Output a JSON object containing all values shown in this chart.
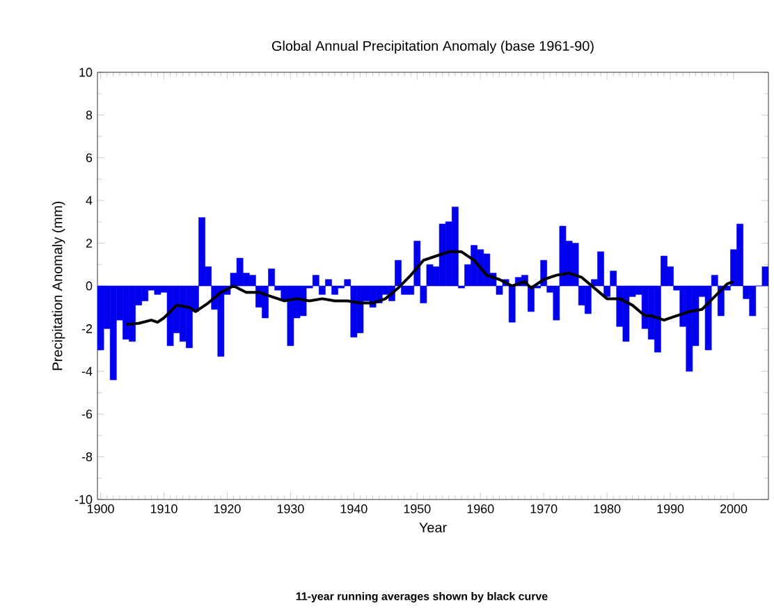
{
  "chart_data": {
    "type": "bar",
    "title": "Global Annual Precipitation Anomaly (base 1961-90)",
    "xlabel": "Year",
    "ylabel": "Precipitation Anomaly (mm)",
    "annotations": [
      "11-year running averages shown by black curve"
    ],
    "x": [
      1900,
      1901,
      1902,
      1903,
      1904,
      1905,
      1906,
      1907,
      1908,
      1909,
      1910,
      1911,
      1912,
      1913,
      1914,
      1915,
      1916,
      1917,
      1918,
      1919,
      1920,
      1921,
      1922,
      1923,
      1924,
      1925,
      1926,
      1927,
      1928,
      1929,
      1930,
      1931,
      1932,
      1933,
      1934,
      1935,
      1936,
      1937,
      1938,
      1939,
      1940,
      1941,
      1942,
      1943,
      1944,
      1945,
      1946,
      1947,
      1948,
      1949,
      1950,
      1951,
      1952,
      1953,
      1954,
      1955,
      1956,
      1957,
      1958,
      1959,
      1960,
      1961,
      1962,
      1963,
      1964,
      1965,
      1966,
      1967,
      1968,
      1969,
      1970,
      1971,
      1972,
      1973,
      1974,
      1975,
      1976,
      1977,
      1978,
      1979,
      1980,
      1981,
      1982,
      1983,
      1984,
      1985,
      1986,
      1987,
      1988,
      1989,
      1990,
      1991,
      1992,
      1993,
      1994,
      1995,
      1996,
      1997,
      1998,
      1999,
      2000,
      2001,
      2002,
      2003,
      2004,
      2005
    ],
    "series": [
      {
        "color": "#0000ee",
        "values": [
          -3.0,
          -2.0,
          -4.4,
          -1.6,
          -2.5,
          -2.6,
          -0.9,
          -0.7,
          -0.2,
          -0.4,
          -0.3,
          -2.8,
          -2.2,
          -2.6,
          -2.9,
          -1.2,
          3.2,
          0.9,
          -1.1,
          -3.3,
          -0.4,
          0.6,
          1.3,
          0.6,
          0.5,
          -1.0,
          -1.5,
          0.8,
          -0.2,
          -0.7,
          -2.8,
          -1.5,
          -1.4,
          -0.1,
          0.5,
          -0.4,
          0.3,
          -0.4,
          -0.1,
          0.3,
          -2.4,
          -2.2,
          -0.7,
          -1.0,
          -0.8,
          -0.4,
          -0.7,
          1.2,
          -0.4,
          -0.4,
          2.1,
          -0.8,
          1.0,
          0.9,
          2.9,
          3.0,
          3.7,
          -0.1,
          1.0,
          1.9,
          1.7,
          1.5,
          0.6,
          -0.4,
          0.3,
          -1.7,
          0.4,
          0.5,
          -1.2,
          -0.1,
          1.2,
          -0.3,
          -1.6,
          2.8,
          2.1,
          2.0,
          -0.9,
          -1.3,
          0.3,
          1.6,
          -0.5,
          0.7,
          -1.9,
          -2.6,
          -0.5,
          -0.4,
          -2.0,
          -2.5,
          -3.1,
          1.4,
          0.9,
          -0.2,
          -1.9,
          -4.0,
          -2.8,
          -0.5,
          -3.0,
          0.5,
          -1.4,
          -0.2,
          1.7,
          2.9,
          -0.6,
          -1.4,
          0.0,
          0.9
        ]
      },
      {
        "type": "line",
        "color": "#000000",
        "x": [
          1904,
          1906,
          1908,
          1909,
          1910,
          1912,
          1914,
          1915,
          1917,
          1919,
          1921,
          1923,
          1925,
          1927,
          1929,
          1931,
          1933,
          1935,
          1937,
          1939,
          1941,
          1943,
          1945,
          1947,
          1949,
          1951,
          1953,
          1955,
          1957,
          1959,
          1961,
          1963,
          1965,
          1967,
          1968,
          1970,
          1972,
          1974,
          1976,
          1978,
          1980,
          1982,
          1984,
          1986,
          1987,
          1989,
          1991,
          1993,
          1995,
          1997,
          1999,
          2000
        ],
        "values": [
          -1.8,
          -1.75,
          -1.6,
          -1.7,
          -1.5,
          -0.9,
          -1.0,
          -1.2,
          -0.8,
          -0.3,
          0.0,
          -0.3,
          -0.3,
          -0.5,
          -0.7,
          -0.6,
          -0.7,
          -0.6,
          -0.7,
          -0.7,
          -0.8,
          -0.8,
          -0.6,
          -0.1,
          0.5,
          1.2,
          1.4,
          1.6,
          1.6,
          1.2,
          0.5,
          0.3,
          0.0,
          0.2,
          -0.1,
          0.3,
          0.5,
          0.6,
          0.4,
          -0.1,
          -0.6,
          -0.6,
          -0.9,
          -1.4,
          -1.4,
          -1.6,
          -1.4,
          -1.2,
          -1.1,
          -0.5,
          0.1,
          0.2
        ]
      }
    ],
    "xlim": [
      1899.5,
      2005.5
    ],
    "ylim": [
      -10,
      10
    ],
    "xticks": [
      1900,
      1910,
      1920,
      1930,
      1940,
      1950,
      1960,
      1970,
      1980,
      1990,
      2000
    ],
    "yticks": [
      -10,
      -8,
      -6,
      -4,
      -2,
      0,
      2,
      4,
      6,
      8,
      10
    ]
  }
}
